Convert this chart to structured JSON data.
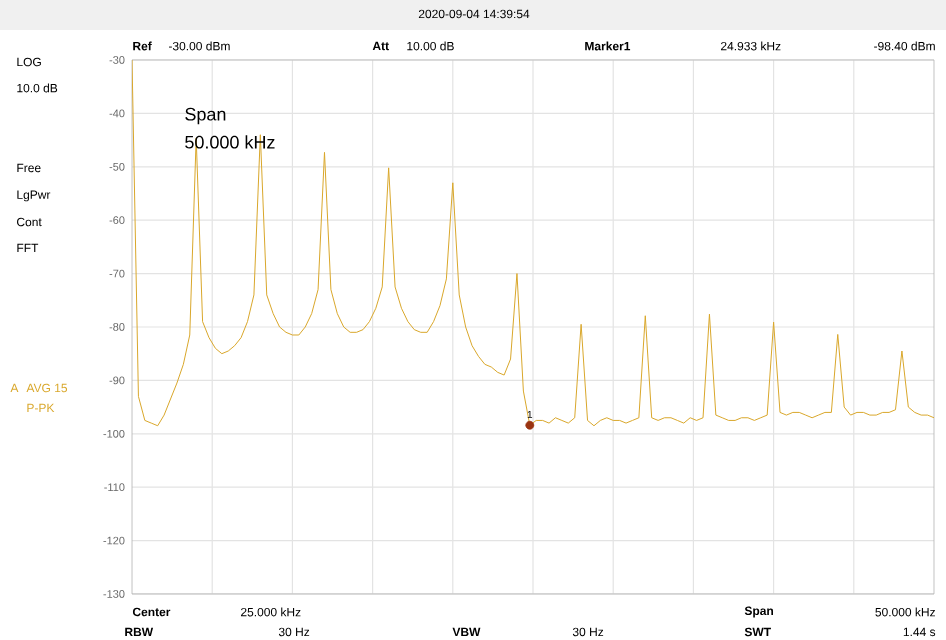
{
  "chart_data": {
    "type": "line",
    "categories": [
      null,
      null,
      null,
      null,
      null,
      null,
      null,
      null,
      null,
      null,
      null,
      null,
      null,
      null,
      null,
      null,
      null,
      null,
      null,
      null,
      null,
      null,
      null,
      null,
      null,
      null,
      null,
      null,
      null,
      null,
      null,
      null,
      null,
      null,
      null,
      null,
      null,
      null,
      null,
      null,
      null,
      null,
      null,
      null,
      null,
      null,
      null,
      null,
      null,
      null,
      null,
      null,
      null,
      null,
      null,
      null,
      null,
      null,
      null,
      null,
      null,
      null,
      null,
      null,
      null,
      null,
      null,
      null,
      null,
      null,
      null,
      null,
      null,
      null,
      null,
      null,
      null,
      null,
      null,
      null,
      null,
      null,
      null,
      null,
      null,
      null,
      null,
      null,
      null,
      null,
      null,
      null,
      null,
      null,
      null,
      null,
      null,
      null,
      null,
      null,
      null,
      null,
      null,
      null,
      null,
      null,
      null,
      null,
      null,
      null,
      null,
      null,
      null,
      null,
      null,
      null,
      null,
      null,
      null,
      null,
      null,
      null,
      null,
      null,
      null,
      null
    ],
    "series": [
      {
        "color": "#d9a72a",
        "marker": "none",
        "line_style": "solid",
        "values": [
          -30,
          -93,
          -97.5,
          -98,
          -98.5,
          -96.5,
          -93.5,
          -90.5,
          -87,
          -81.5,
          -44.6,
          -79,
          -82,
          -84,
          -85,
          -84.5,
          -83.5,
          -82,
          -79,
          -74,
          -44,
          -74,
          -77.5,
          -80,
          -81,
          -81.5,
          -81.5,
          -80,
          -77.5,
          -73,
          -47.3,
          -73,
          -77.5,
          -80,
          -81,
          -81,
          -80.5,
          -79,
          -76.5,
          -72.5,
          -50.2,
          -72.5,
          -76.5,
          -79,
          -80.5,
          -81,
          -81,
          -79,
          -76,
          -71,
          -53,
          -74,
          -80,
          -83.5,
          -85.5,
          -87,
          -87.5,
          -88.5,
          -89,
          -86,
          -70,
          -92,
          -98.4,
          -97.5,
          -97.5,
          -98,
          -97,
          -97.5,
          -98,
          -97,
          -79.5,
          -97.5,
          -98.5,
          -97.5,
          -97,
          -97.5,
          -97.5,
          -98,
          -97.5,
          -97,
          -77.9,
          -97,
          -97.5,
          -97,
          -97,
          -97.5,
          -98,
          -97,
          -97.5,
          -97,
          -77.6,
          -96.5,
          -97,
          -97.5,
          -97.5,
          -97,
          -97,
          -97.5,
          -97,
          -96.5,
          -79.1,
          -96,
          -96.5,
          -96,
          -96,
          -96.5,
          -97,
          -96.5,
          -96,
          -96,
          -81.4,
          -95,
          -96.5,
          -96,
          -96,
          -96.5,
          -96.5,
          -96,
          -96,
          -95.5,
          -84.5,
          -95,
          -96,
          -96.5,
          -96.5,
          -97
        ]
      },
      {
        "type": "scatter",
        "color": "#9a3412",
        "marker": "circle",
        "values": [
          null,
          null,
          null,
          null,
          null,
          null,
          null,
          null,
          null,
          null,
          null,
          null,
          null,
          null,
          null,
          null,
          null,
          null,
          null,
          null,
          null,
          null,
          null,
          null,
          null,
          null,
          null,
          null,
          null,
          null,
          null,
          null,
          null,
          null,
          null,
          null,
          null,
          null,
          null,
          null,
          null,
          null,
          null,
          null,
          null,
          null,
          null,
          null,
          null,
          null,
          null,
          null,
          null,
          null,
          null,
          null,
          null,
          null,
          null,
          null,
          null,
          null,
          -98.4,
          null,
          null,
          null,
          null,
          null,
          null,
          null,
          null,
          null,
          null,
          null,
          null,
          null,
          null,
          null,
          null,
          null,
          null,
          null,
          null,
          null,
          null,
          null,
          null,
          null,
          null,
          null,
          null,
          null,
          null,
          null,
          null,
          null,
          null,
          null,
          null,
          null,
          null,
          null,
          null,
          null,
          null,
          null,
          null,
          null,
          null,
          null,
          null,
          null,
          null,
          null,
          null,
          null,
          null,
          null,
          null,
          null,
          null,
          null,
          null,
          null,
          null,
          null
        ]
      }
    ],
    "ylim": [
      -130,
      -30
    ],
    "yticks": [
      -130,
      -120,
      -110,
      -100,
      -90,
      -80,
      -70,
      -60,
      -50,
      -40,
      -30
    ],
    "tick_labels": "y",
    "grid": true,
    "annotations": [
      "2020-09-04   14:39:54",
      "Ref",
      "-30.00 dBm",
      "Att",
      "10.00 dB",
      "Marker1",
      "24.933 kHz",
      "-98.40 dBm",
      "LOG",
      "10.0 dB",
      "Free",
      "LgPwr",
      "Cont",
      "FFT",
      "A",
      "AVG 15",
      "P-PK",
      "Span",
      "50.000 kHz",
      "Center",
      "25.000 kHz",
      "Span",
      "50.000 kHz",
      "RBW",
      "30 Hz",
      "VBW",
      "30 Hz",
      "SWT",
      "1.44 s",
      "1"
    ]
  }
}
